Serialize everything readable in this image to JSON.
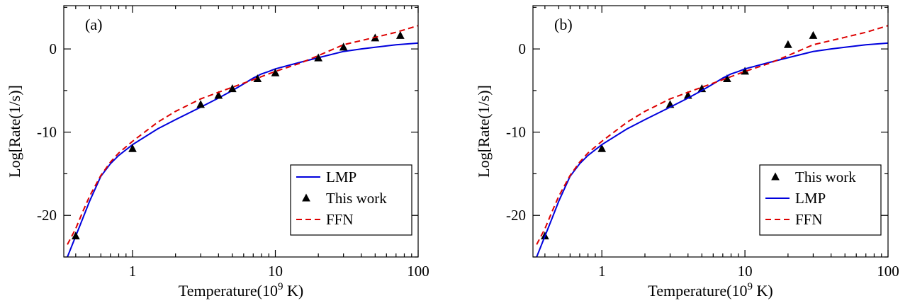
{
  "chart_data": [
    {
      "type": "line",
      "panel_label": "(a)",
      "xlabel": "Temperature(10",
      "xlabel_sup": "9",
      "xlabel_tail": " K)",
      "ylabel": "Log[Rate(1/s)]",
      "xscale": "log",
      "xlim": [
        0.33,
        100
      ],
      "ylim": [
        -25,
        5.2
      ],
      "x_ticks": [
        1,
        10,
        100
      ],
      "x_tick_labels": [
        "1",
        "10",
        "100"
      ],
      "y_ticks": [
        0,
        -10,
        -20
      ],
      "y_tick_labels": [
        "0",
        "-10",
        "-20"
      ],
      "legend_position": "lower-right",
      "series": [
        {
          "name": "LMP",
          "style": "line",
          "color": "#0000dd",
          "x": [
            0.35,
            0.4,
            0.45,
            0.5,
            0.6,
            0.7,
            0.8,
            1,
            1.5,
            2,
            3,
            4,
            5,
            6,
            7,
            8,
            9,
            10,
            15,
            20,
            30,
            40,
            50,
            70,
            100
          ],
          "y": [
            -25,
            -22.5,
            -20.3,
            -18.3,
            -15.3,
            -13.8,
            -12.8,
            -11.5,
            -9.6,
            -8.5,
            -7,
            -5.9,
            -5,
            -4.2,
            -3.5,
            -3,
            -2.7,
            -2.4,
            -1.6,
            -1.05,
            -0.3,
            0,
            0.2,
            0.5,
            0.7
          ]
        },
        {
          "name": "This work",
          "style": "marker",
          "color": "#000000",
          "x": [
            0.4,
            1,
            3,
            4,
            5,
            7.5,
            10,
            20,
            30,
            50,
            75
          ],
          "y": [
            -22.5,
            -12,
            -6.7,
            -5.6,
            -4.8,
            -3.6,
            -2.9,
            -1.1,
            0.2,
            1.3,
            1.6
          ]
        },
        {
          "name": "FFN",
          "style": "dashed",
          "color": "#dd0000",
          "x": [
            0.35,
            0.4,
            0.45,
            0.5,
            0.6,
            0.7,
            0.8,
            1,
            1.5,
            2,
            3,
            4,
            5,
            7,
            10,
            15,
            20,
            30,
            50,
            70,
            100
          ],
          "y": [
            -23.5,
            -21.6,
            -19.5,
            -17.7,
            -15.2,
            -13.6,
            -12.5,
            -11.1,
            -8.8,
            -7.5,
            -6,
            -5.2,
            -4.6,
            -3.7,
            -2.7,
            -1.7,
            -0.8,
            0.5,
            1.4,
            2,
            2.8
          ]
        }
      ],
      "legend_order": [
        "LMP",
        "This work",
        "FFN"
      ]
    },
    {
      "type": "line",
      "panel_label": "(b)",
      "xlabel": "Temperature(10",
      "xlabel_sup": "9",
      "xlabel_tail": " K)",
      "ylabel": "Log[Rate(1/s)]",
      "xscale": "log",
      "xlim": [
        0.33,
        100
      ],
      "ylim": [
        -25,
        5.2
      ],
      "x_ticks": [
        1,
        10,
        100
      ],
      "x_tick_labels": [
        "1",
        "10",
        "100"
      ],
      "y_ticks": [
        0,
        -10,
        -20
      ],
      "y_tick_labels": [
        "0",
        "-10",
        "-20"
      ],
      "legend_position": "lower-right",
      "series": [
        {
          "name": "This work",
          "style": "marker",
          "color": "#000000",
          "x": [
            0.4,
            1,
            3,
            4,
            5,
            7.5,
            10,
            20,
            30
          ],
          "y": [
            -22.5,
            -12,
            -6.7,
            -5.6,
            -4.8,
            -3.6,
            -2.7,
            0.5,
            1.6
          ]
        },
        {
          "name": "LMP",
          "style": "line",
          "color": "#0000dd",
          "x": [
            0.35,
            0.4,
            0.45,
            0.5,
            0.6,
            0.7,
            0.8,
            1,
            1.5,
            2,
            3,
            4,
            5,
            6,
            7,
            8,
            9,
            10,
            15,
            20,
            30,
            40,
            50,
            70,
            100
          ],
          "y": [
            -25,
            -22.5,
            -20.3,
            -18.3,
            -15.3,
            -13.8,
            -12.8,
            -11.5,
            -9.6,
            -8.5,
            -7,
            -5.9,
            -5,
            -4.2,
            -3.5,
            -3,
            -2.7,
            -2.4,
            -1.6,
            -1.05,
            -0.3,
            0,
            0.2,
            0.5,
            0.7
          ]
        },
        {
          "name": "FFN",
          "style": "dashed",
          "color": "#dd0000",
          "x": [
            0.35,
            0.4,
            0.45,
            0.5,
            0.6,
            0.7,
            0.8,
            1,
            1.5,
            2,
            3,
            4,
            5,
            7,
            10,
            15,
            20,
            30,
            50,
            70,
            100
          ],
          "y": [
            -23.5,
            -21.6,
            -19.5,
            -17.7,
            -15.2,
            -13.6,
            -12.5,
            -11.1,
            -8.8,
            -7.5,
            -6,
            -5.2,
            -4.6,
            -3.7,
            -2.7,
            -1.7,
            -0.8,
            0.5,
            1.4,
            2,
            2.8
          ]
        }
      ],
      "legend_order": [
        "This work",
        "LMP",
        "FFN"
      ]
    }
  ]
}
